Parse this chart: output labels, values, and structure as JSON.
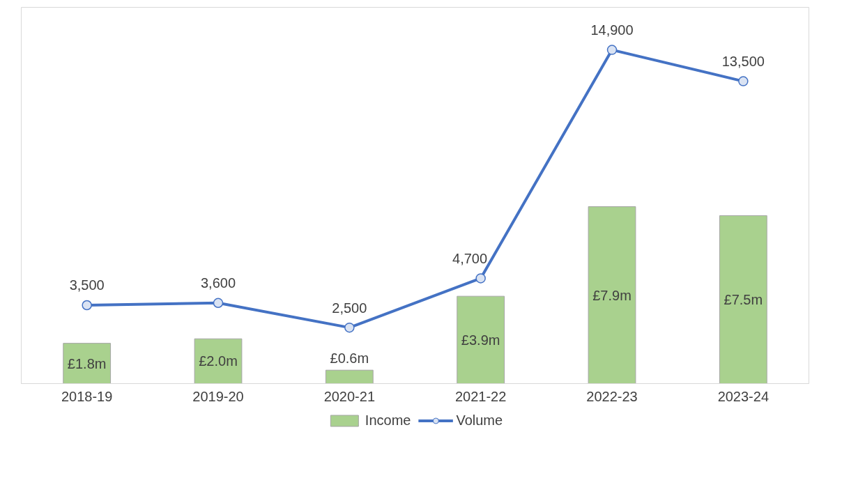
{
  "chart_data": {
    "type": "bar",
    "categories": [
      "2018-19",
      "2019-20",
      "2020-21",
      "2021-22",
      "2022-23",
      "2023-24"
    ],
    "series": [
      {
        "name": "Income",
        "color": "#a9d18e",
        "values": [
          1.8,
          2.0,
          0.6,
          3.9,
          7.9,
          7.5
        ],
        "value_labels": [
          "£1.8m",
          "£2.0m",
          "£0.6m",
          "£3.9m",
          "£7.9m",
          "£7.5m"
        ]
      },
      {
        "name": "Volume",
        "type": "line",
        "axis": "y2",
        "color": "#4472c4",
        "marker": "circle",
        "values": [
          3500,
          3600,
          2500,
          4700,
          14900,
          13500
        ],
        "value_labels": [
          "3,500",
          "3,600",
          "2,500",
          "4,700",
          "14,900",
          "13,500"
        ]
      }
    ],
    "ylim": [
      0,
      16.8
    ],
    "y2lim": [
      0,
      16800
    ],
    "tick_labels": "x",
    "legend": "bottom",
    "grid": false
  }
}
